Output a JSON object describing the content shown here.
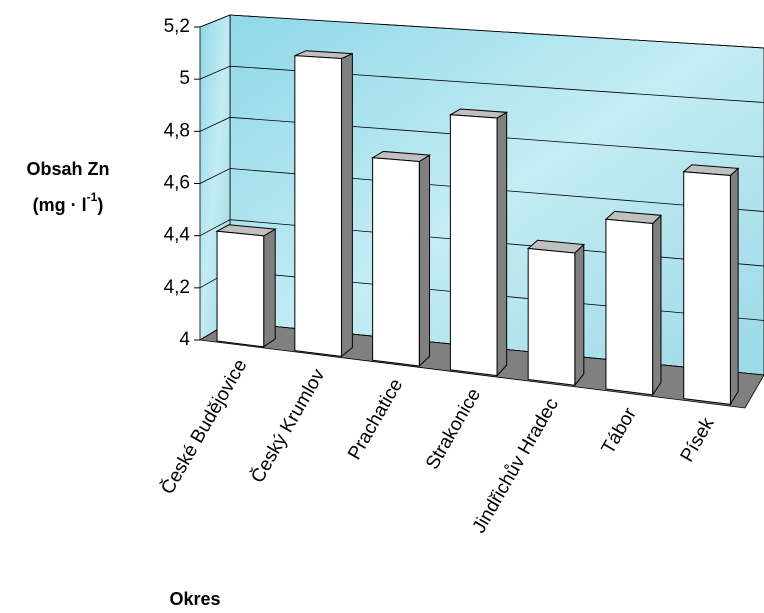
{
  "chart_data": {
    "type": "bar3d",
    "ylabel": [
      "Obsah Zn",
      "(mg · l",
      "-1",
      ")"
    ],
    "xlabel": "Okres",
    "categories": [
      "České Budějovice",
      "Český Krumlov",
      "Prachatice",
      "Strakonice",
      "Jindřichův Hradec",
      "Tábor",
      "Písek"
    ],
    "values": [
      4.42,
      5.11,
      4.75,
      4.93,
      4.47,
      4.6,
      4.79
    ],
    "color": "#ffffff",
    "ylim": [
      4,
      5.2
    ],
    "yticks": [
      4,
      {
        "value": 4.2,
        "label": "4,2"
      },
      {
        "value": 4.4,
        "label": "4,4"
      },
      {
        "value": 4.6,
        "label": "4,6"
      },
      {
        "value": 4.8,
        "label": "4,8"
      },
      5,
      {
        "value": 5.2,
        "label": "5,2"
      }
    ],
    "grid": true
  }
}
